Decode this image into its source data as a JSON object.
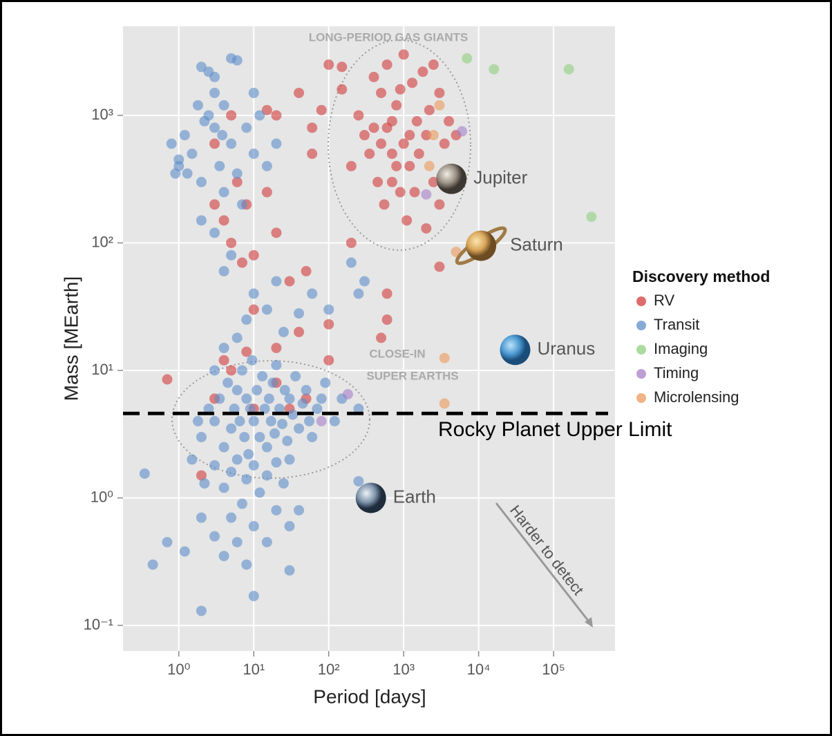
{
  "chart_data": {
    "type": "scatter",
    "x_label": "Period [days]",
    "y_label": "Mass [MEarth]",
    "xscale": "log",
    "yscale": "log",
    "xlim": [
      0.18,
      660000
    ],
    "ylim": [
      0.063,
      5000
    ],
    "xticks": [
      {
        "value": 1,
        "label": "10⁰"
      },
      {
        "value": 10,
        "label": "10¹"
      },
      {
        "value": 100,
        "label": "10²"
      },
      {
        "value": 1000,
        "label": "10³"
      },
      {
        "value": 10000,
        "label": "10⁴"
      },
      {
        "value": 100000,
        "label": "10⁵"
      }
    ],
    "yticks": [
      {
        "value": 0.1,
        "label": "10⁻¹"
      },
      {
        "value": 1,
        "label": "10⁰"
      },
      {
        "value": 10,
        "label": "10¹"
      },
      {
        "value": 100,
        "label": "10²"
      },
      {
        "value": 1000,
        "label": "10³"
      }
    ],
    "grid": true,
    "legend_title": "Discovery method",
    "legend_position": "right",
    "series": [
      {
        "name": "RV",
        "color": "#d23b3b",
        "x": [
          400,
          500,
          600,
          700,
          800,
          1000,
          1200,
          1500,
          2000,
          2500,
          3000,
          350,
          450,
          550,
          900,
          1100,
          1300,
          1800,
          2200,
          3500,
          4000,
          600,
          700,
          300,
          250,
          200,
          800,
          1600,
          2500,
          5000,
          1000,
          1400,
          3000,
          400,
          500,
          1200,
          900,
          700,
          2000,
          150,
          0.7,
          3,
          4,
          5,
          6,
          7,
          10,
          15,
          20,
          30,
          50,
          60,
          80,
          100,
          150,
          20,
          40,
          3,
          5,
          8,
          60,
          15,
          10,
          20,
          40,
          8,
          5,
          20,
          30,
          3,
          10,
          50,
          100,
          200,
          600,
          600,
          500,
          3000,
          2,
          100,
          4
        ],
        "y": [
          2000,
          1500,
          800,
          500,
          1200,
          600,
          400,
          900,
          700,
          300,
          1500,
          500,
          300,
          200,
          250,
          150,
          1800,
          2200,
          1100,
          600,
          900,
          2500,
          900,
          700,
          1000,
          400,
          400,
          500,
          2500,
          700,
          3000,
          250,
          200,
          800,
          600,
          700,
          1600,
          300,
          130,
          1600,
          8.5,
          200,
          150,
          100,
          300,
          70,
          80,
          250,
          120,
          50,
          60,
          500,
          1100,
          2500,
          2400,
          1000,
          1500,
          600,
          1000,
          200,
          800,
          1100,
          30,
          15,
          20,
          14,
          10,
          8,
          5,
          6,
          5,
          6,
          12,
          100,
          25,
          40,
          18,
          65,
          1.5,
          23,
          12
        ]
      },
      {
        "name": "Transit",
        "color": "#5d8dc9",
        "x": [
          0.8,
          1,
          1.2,
          1.5,
          2,
          2.5,
          3,
          3.5,
          4,
          5,
          1,
          1.3,
          2,
          2.5,
          3,
          4,
          5,
          6,
          2,
          3,
          5,
          7,
          10,
          12,
          4,
          10,
          3,
          1.8,
          6,
          8,
          15,
          20,
          0.9,
          2.2,
          3.8,
          2,
          2.5,
          3,
          3.5,
          4,
          4.5,
          5,
          5.5,
          6,
          6.5,
          7,
          7.5,
          8,
          8.5,
          9,
          9.5,
          10,
          11,
          12,
          13,
          14,
          15,
          16,
          17,
          18,
          19,
          20,
          22,
          24,
          26,
          28,
          30,
          33,
          36,
          40,
          45,
          50,
          55,
          60,
          70,
          80,
          90,
          120,
          150,
          250,
          3,
          4,
          6,
          8,
          10,
          15,
          25,
          40,
          1.5,
          1.8,
          2.2,
          3,
          4,
          5,
          6,
          8,
          10,
          12,
          15,
          20,
          25,
          30,
          7,
          5,
          10,
          3,
          2,
          4,
          6,
          8,
          15,
          30,
          10,
          2,
          0.7,
          0.45,
          1.2,
          0.35,
          30,
          40,
          20,
          250,
          200,
          300,
          250,
          100,
          60,
          20
        ],
        "y": [
          600,
          400,
          700,
          500,
          300,
          1000,
          800,
          400,
          250,
          600,
          450,
          350,
          2400,
          2200,
          1500,
          1200,
          2800,
          2700,
          150,
          120,
          80,
          200,
          500,
          1000,
          60,
          1500,
          2000,
          1200,
          350,
          800,
          400,
          600,
          350,
          900,
          700,
          3,
          5,
          4,
          6,
          2.5,
          8,
          3.5,
          5,
          7,
          4,
          10,
          3,
          6,
          2.2,
          5,
          12,
          4,
          7,
          3,
          9,
          5,
          2.5,
          6,
          4,
          8,
          3.2,
          11,
          5,
          3.8,
          7,
          2.8,
          6,
          4.5,
          9,
          3.5,
          5.5,
          7,
          4,
          3,
          5,
          6,
          8,
          4,
          6,
          5,
          10,
          15,
          18,
          25,
          40,
          30,
          20,
          28,
          2,
          4,
          1.3,
          1.8,
          1.2,
          1.6,
          2,
          1.4,
          1.8,
          1.1,
          1.5,
          1.9,
          1.3,
          2,
          0.9,
          0.7,
          0.6,
          0.5,
          0.7,
          0.35,
          0.45,
          0.3,
          0.45,
          0.27,
          0.17,
          0.13,
          0.45,
          0.3,
          0.38,
          1.55,
          0.6,
          0.8,
          0.8,
          1.35,
          70,
          50,
          40,
          30,
          40,
          50
        ]
      },
      {
        "name": "Imaging",
        "color": "#8fcf7d",
        "x": [
          7000,
          16000,
          160000,
          320000
        ],
        "y": [
          2800,
          2300,
          2300,
          160
        ]
      },
      {
        "name": "Timing",
        "color": "#a77fca",
        "x": [
          6000,
          180,
          80,
          2000
        ],
        "y": [
          750,
          6.5,
          4,
          240
        ]
      },
      {
        "name": "Microlensing",
        "color": "#eb9a5a",
        "x": [
          3500,
          3500,
          5000,
          3000,
          2500,
          2200
        ],
        "y": [
          12.5,
          5.5,
          85,
          1200,
          700,
          400
        ]
      }
    ],
    "planets": [
      {
        "name": "Jupiter",
        "x": 4333,
        "y": 318
      },
      {
        "name": "Saturn",
        "x": 10759,
        "y": 95
      },
      {
        "name": "Uranus",
        "x": 30687,
        "y": 14.5
      },
      {
        "name": "Earth",
        "x": 365,
        "y": 1
      }
    ],
    "annotations": [
      "LONG-PERIOD GAS GIANTS",
      "CLOSE-IN",
      "SUPER EARTHS",
      "Harder to detect"
    ],
    "rocky_limit": {
      "label": "Rocky Planet Upper Limit",
      "value": 4.6
    }
  }
}
